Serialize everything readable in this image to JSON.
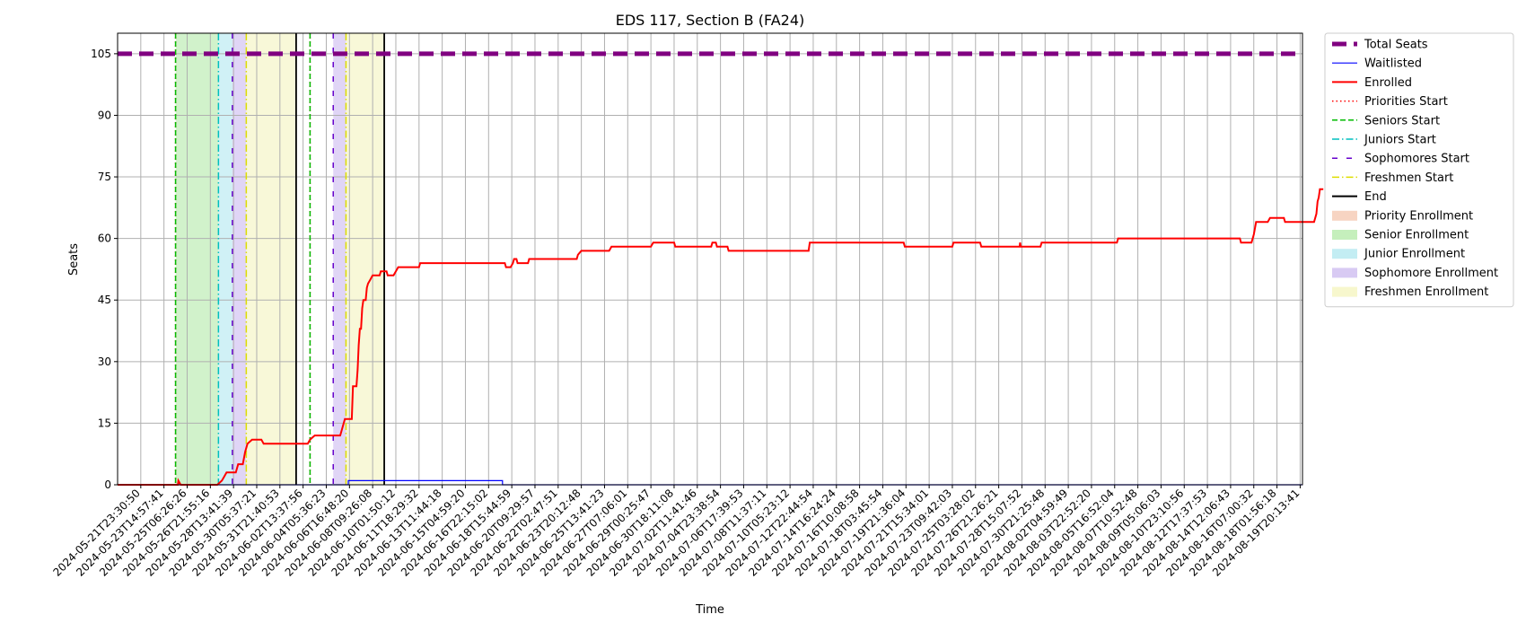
{
  "chart_data": {
    "type": "line",
    "title": "EDS 117, Section B (FA24)",
    "xlabel": "Time",
    "ylabel": "Seats",
    "ylim": [
      0,
      110
    ],
    "yticks": [
      0,
      15,
      30,
      45,
      60,
      75,
      90,
      105
    ],
    "grid": true,
    "legend_position": "outside-right",
    "x_tick_labels": [
      "2024-05-21T23:30:50",
      "2024-05-23T14:57:41",
      "2024-05-25T06:26:26",
      "2024-05-26T21:55:16",
      "2024-05-28T13:41:39",
      "2024-05-30T05:37:21",
      "2024-05-31T21:40:53",
      "2024-06-02T13:37:56",
      "2024-06-04T05:36:23",
      "2024-06-06T16:48:20",
      "2024-06-08T09:26:08",
      "2024-06-10T01:50:12",
      "2024-06-11T18:29:32",
      "2024-06-13T11:44:18",
      "2024-06-15T04:59:20",
      "2024-06-16T22:15:02",
      "2024-06-18T15:44:59",
      "2024-06-20T09:29:57",
      "2024-06-22T02:47:51",
      "2024-06-23T20:12:48",
      "2024-06-25T13:41:23",
      "2024-06-27T07:06:01",
      "2024-06-29T00:25:47",
      "2024-06-30T18:11:08",
      "2024-07-02T11:41:46",
      "2024-07-04T23:38:54",
      "2024-07-06T17:39:53",
      "2024-07-08T11:37:11",
      "2024-07-10T05:23:12",
      "2024-07-12T22:44:54",
      "2024-07-14T16:24:24",
      "2024-07-16T10:08:58",
      "2024-07-18T03:45:54",
      "2024-07-19T21:36:04",
      "2024-07-21T15:34:01",
      "2024-07-23T09:42:03",
      "2024-07-25T03:28:02",
      "2024-07-26T21:26:21",
      "2024-07-28T15:07:52",
      "2024-07-30T21:25:48",
      "2024-08-02T04:59:49",
      "2024-08-03T22:52:20",
      "2024-08-05T16:52:04",
      "2024-08-07T10:52:48",
      "2024-08-09T05:06:03",
      "2024-08-10T23:10:56",
      "2024-08-12T17:37:53",
      "2024-08-14T12:06:43",
      "2024-08-16T07:00:32",
      "2024-08-18T01:56:18",
      "2024-08-19T20:13:41"
    ],
    "x_range": [
      -1,
      50.1
    ],
    "series": [
      {
        "name": "Total Seats",
        "color": "#800080",
        "style": "dashed-thick",
        "points": [
          [
            -1,
            105
          ],
          [
            50.1,
            105
          ]
        ]
      },
      {
        "name": "Waitlisted",
        "color": "#0000ff",
        "style": "solid-thin",
        "points": [
          [
            -1,
            0
          ],
          [
            8.95,
            0
          ],
          [
            8.95,
            1
          ],
          [
            15.6,
            1
          ],
          [
            15.6,
            0
          ],
          [
            50.1,
            0
          ]
        ]
      },
      {
        "name": "Enrolled",
        "color": "#ff0000",
        "style": "solid",
        "points": [
          [
            -1,
            0
          ],
          [
            1.6,
            0
          ],
          [
            1.62,
            1
          ],
          [
            1.72,
            0
          ],
          [
            3.3,
            0
          ],
          [
            3.5,
            1
          ],
          [
            3.6,
            2
          ],
          [
            3.7,
            3
          ],
          [
            4.1,
            3
          ],
          [
            4.2,
            5
          ],
          [
            4.4,
            5
          ],
          [
            4.5,
            8
          ],
          [
            4.6,
            10
          ],
          [
            4.8,
            11
          ],
          [
            5.2,
            11
          ],
          [
            5.3,
            10
          ],
          [
            7.2,
            10
          ],
          [
            7.3,
            11
          ],
          [
            7.5,
            12
          ],
          [
            8.6,
            12
          ],
          [
            8.7,
            14
          ],
          [
            8.8,
            16
          ],
          [
            9.1,
            16
          ],
          [
            9.15,
            24
          ],
          [
            9.3,
            24
          ],
          [
            9.35,
            28
          ],
          [
            9.4,
            34
          ],
          [
            9.45,
            38
          ],
          [
            9.5,
            38
          ],
          [
            9.55,
            43
          ],
          [
            9.6,
            45
          ],
          [
            9.7,
            45
          ],
          [
            9.75,
            48
          ],
          [
            9.8,
            49
          ],
          [
            9.9,
            50
          ],
          [
            10,
            51
          ],
          [
            10.3,
            51
          ],
          [
            10.35,
            52
          ],
          [
            10.6,
            52
          ],
          [
            10.65,
            51
          ],
          [
            10.9,
            51
          ],
          [
            11,
            52
          ],
          [
            11.1,
            53
          ],
          [
            12,
            53
          ],
          [
            12.05,
            54
          ],
          [
            15.7,
            54
          ],
          [
            15.75,
            53
          ],
          [
            15.95,
            53
          ],
          [
            16.05,
            54
          ],
          [
            16.1,
            55
          ],
          [
            16.2,
            55
          ],
          [
            16.25,
            54
          ],
          [
            16.7,
            54
          ],
          [
            16.75,
            55
          ],
          [
            18.8,
            55
          ],
          [
            18.85,
            56
          ],
          [
            19,
            57
          ],
          [
            20.2,
            57
          ],
          [
            20.3,
            58
          ],
          [
            22,
            58
          ],
          [
            22.1,
            59
          ],
          [
            23,
            59
          ],
          [
            23.05,
            58
          ],
          [
            24.6,
            58
          ],
          [
            24.65,
            59
          ],
          [
            24.8,
            59
          ],
          [
            24.85,
            58
          ],
          [
            25.3,
            58
          ],
          [
            25.35,
            57
          ],
          [
            28.8,
            57
          ],
          [
            28.85,
            59
          ],
          [
            32.9,
            59
          ],
          [
            32.95,
            58
          ],
          [
            35,
            58
          ],
          [
            35.05,
            59
          ],
          [
            36.2,
            59
          ],
          [
            36.25,
            58
          ],
          [
            37.9,
            58
          ],
          [
            37.92,
            59
          ],
          [
            37.95,
            58
          ],
          [
            38.8,
            58
          ],
          [
            38.85,
            59
          ],
          [
            42.1,
            59
          ],
          [
            42.15,
            60
          ],
          [
            47.4,
            60
          ],
          [
            47.45,
            59
          ],
          [
            47.9,
            59
          ],
          [
            48,
            61
          ],
          [
            48.1,
            64
          ],
          [
            48.6,
            64
          ],
          [
            48.7,
            65
          ],
          [
            49.3,
            65
          ],
          [
            49.35,
            64
          ],
          [
            50.6,
            64
          ],
          [
            50.7,
            66
          ],
          [
            50.75,
            69
          ],
          [
            50.8,
            70
          ],
          [
            50.85,
            72
          ],
          [
            51,
            72
          ]
        ]
      }
    ],
    "vertical_markers": [
      {
        "name": "Priorities Start",
        "color": "#ff0000",
        "style": "dotted",
        "x": [
          1.5,
          7.3
        ]
      },
      {
        "name": "Seniors Start",
        "color": "#00bb00",
        "style": "dashed",
        "x": [
          1.5,
          7.3
        ]
      },
      {
        "name": "Juniors Start",
        "color": "#00bfbf",
        "style": "dashdot",
        "x": [
          3.35
        ]
      },
      {
        "name": "Sophomores Start",
        "color": "#6600cc",
        "style": "loosedash",
        "x": [
          3.95,
          8.3
        ]
      },
      {
        "name": "Freshmen Start",
        "color": "#dddd00",
        "style": "dashdot",
        "x": [
          4.55,
          8.85
        ]
      },
      {
        "name": "End",
        "color": "#000000",
        "style": "solid",
        "x": [
          6.7,
          10.5
        ]
      }
    ],
    "spans": [
      {
        "name": "Priority Enrollment",
        "color": "#f4c2a8"
      },
      {
        "name": "Senior Enrollment",
        "color": "#ace8a0",
        "ranges": [
          [
            1.5,
            3.35
          ]
        ]
      },
      {
        "name": "Junior Enrollment",
        "color": "#a9e5ee",
        "ranges": [
          [
            3.35,
            3.95
          ]
        ]
      },
      {
        "name": "Sophomore Enrollment",
        "color": "#c7b3ee",
        "ranges": [
          [
            3.95,
            4.55
          ],
          [
            8.3,
            8.85
          ]
        ]
      },
      {
        "name": "Freshmen Enrollment",
        "color": "#f3f3b8",
        "ranges": [
          [
            4.55,
            6.7
          ],
          [
            8.85,
            10.5
          ]
        ]
      }
    ],
    "legend": [
      {
        "label": "Total Seats",
        "kind": "line",
        "color": "#800080",
        "style": "dashed-thick"
      },
      {
        "label": "Waitlisted",
        "kind": "line",
        "color": "#0000ff",
        "style": "solid-thin"
      },
      {
        "label": "Enrolled",
        "kind": "line",
        "color": "#ff0000",
        "style": "solid"
      },
      {
        "label": "Priorities Start",
        "kind": "line",
        "color": "#ff0000",
        "style": "dotted"
      },
      {
        "label": "Seniors Start",
        "kind": "line",
        "color": "#00bb00",
        "style": "dashed"
      },
      {
        "label": "Juniors Start",
        "kind": "line",
        "color": "#00bfbf",
        "style": "dashdot"
      },
      {
        "label": "Sophomores Start",
        "kind": "line",
        "color": "#6600cc",
        "style": "loosedash"
      },
      {
        "label": "Freshmen Start",
        "kind": "line",
        "color": "#dddd00",
        "style": "dashdot"
      },
      {
        "label": "End",
        "kind": "line",
        "color": "#000000",
        "style": "solid"
      },
      {
        "label": "Priority Enrollment",
        "kind": "patch",
        "color": "#f4c2a8"
      },
      {
        "label": "Senior Enrollment",
        "kind": "patch",
        "color": "#ace8a0"
      },
      {
        "label": "Junior Enrollment",
        "kind": "patch",
        "color": "#a9e5ee"
      },
      {
        "label": "Sophomore Enrollment",
        "kind": "patch",
        "color": "#c7b3ee"
      },
      {
        "label": "Freshmen Enrollment",
        "kind": "patch",
        "color": "#f3f3b8"
      }
    ]
  }
}
